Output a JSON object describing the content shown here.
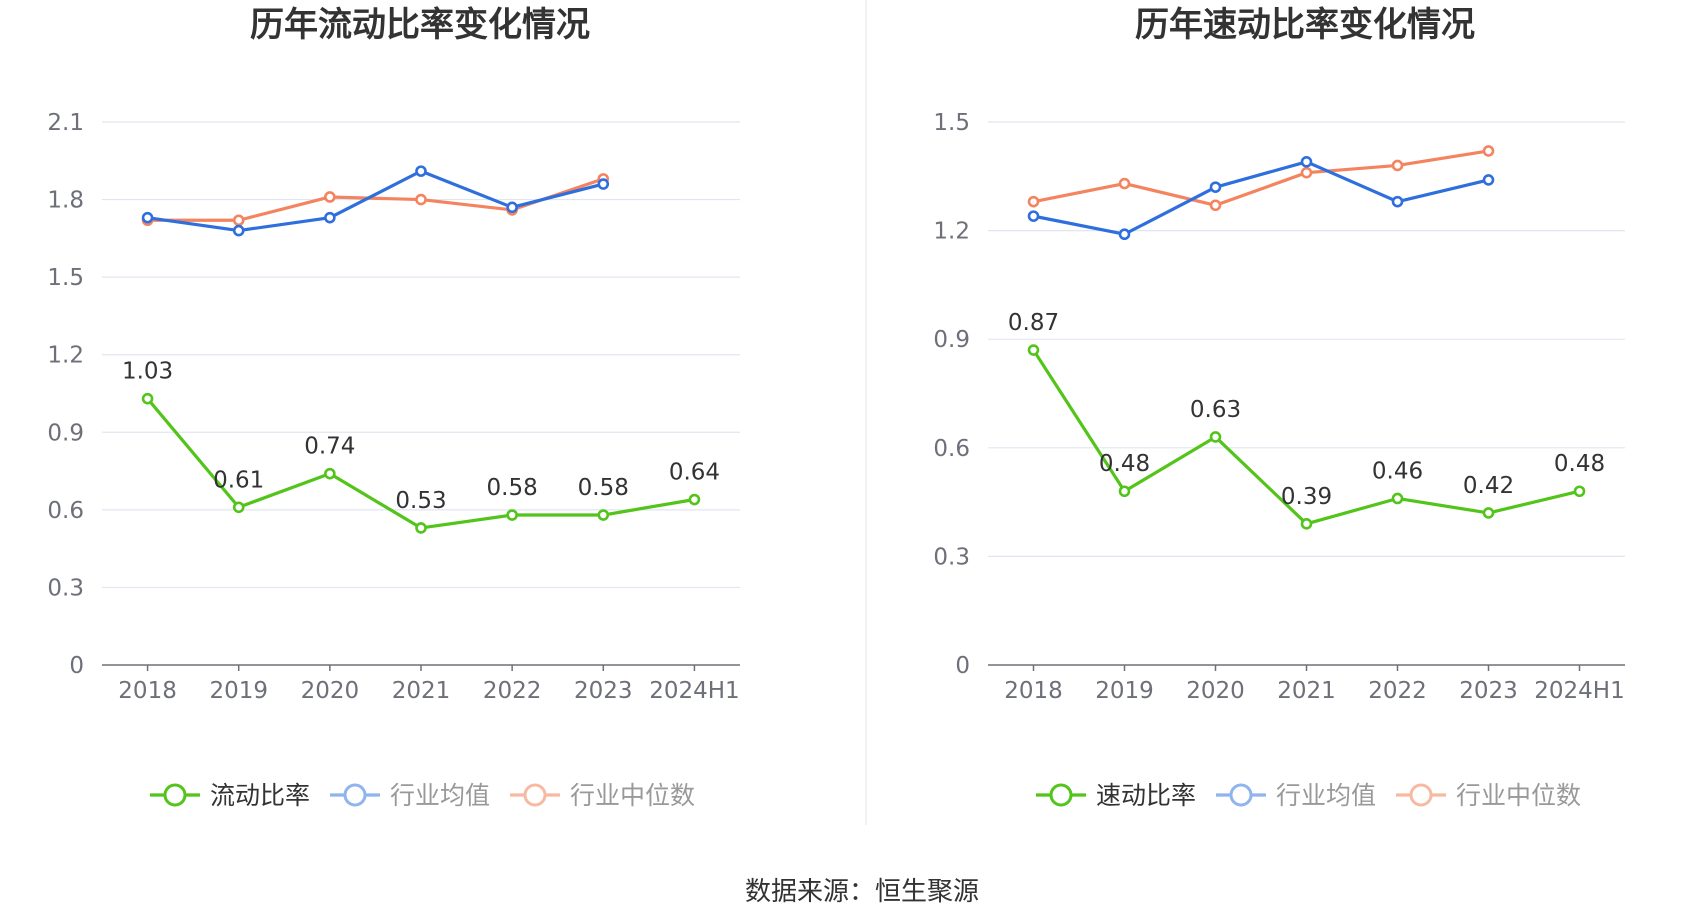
{
  "source": "数据来源：恒生聚源",
  "chart_data": [
    {
      "type": "line",
      "title": "历年流动比率变化情况",
      "categories": [
        "2018",
        "2019",
        "2020",
        "2021",
        "2022",
        "2023",
        "2024H1"
      ],
      "ylim": [
        0,
        2.1
      ],
      "yticks": [
        "0",
        "0.3",
        "0.6",
        "0.9",
        "1.2",
        "1.5",
        "1.8",
        "2.1"
      ],
      "grid": true,
      "legend_position": "bottom",
      "series": [
        {
          "name": "流动比率",
          "color": "#52c41a",
          "values": [
            1.03,
            0.61,
            0.74,
            0.53,
            0.58,
            0.58,
            0.64
          ],
          "labels": [
            "1.03",
            "0.61",
            "0.74",
            "0.53",
            "0.58",
            "0.58",
            "0.64"
          ],
          "show_labels": true
        },
        {
          "name": "行业均值",
          "color": "#2f6fdd",
          "values": [
            1.73,
            1.68,
            1.73,
            1.91,
            1.77,
            1.86,
            null
          ],
          "show_labels": false
        },
        {
          "name": "行业中位数",
          "color": "#f4845f",
          "values": [
            1.72,
            1.72,
            1.81,
            1.8,
            1.76,
            1.88,
            null
          ],
          "show_labels": false
        }
      ]
    },
    {
      "type": "line",
      "title": "历年速动比率变化情况",
      "categories": [
        "2018",
        "2019",
        "2020",
        "2021",
        "2022",
        "2023",
        "2024H1"
      ],
      "ylim": [
        0,
        1.5
      ],
      "yticks": [
        "0",
        "0.3",
        "0.6",
        "0.9",
        "1.2",
        "1.5"
      ],
      "grid": true,
      "legend_position": "bottom",
      "series": [
        {
          "name": "速动比率",
          "color": "#52c41a",
          "values": [
            0.87,
            0.48,
            0.63,
            0.39,
            0.46,
            0.42,
            0.48
          ],
          "labels": [
            "0.87",
            "0.48",
            "0.63",
            "0.39",
            "0.46",
            "0.42",
            "0.48"
          ],
          "show_labels": true
        },
        {
          "name": "行业均值",
          "color": "#2f6fdd",
          "values": [
            1.24,
            1.19,
            1.32,
            1.39,
            1.28,
            1.34,
            null
          ],
          "show_labels": false
        },
        {
          "name": "行业中位数",
          "color": "#f4845f",
          "values": [
            1.28,
            1.33,
            1.27,
            1.36,
            1.38,
            1.42,
            null
          ],
          "show_labels": false
        }
      ]
    }
  ]
}
